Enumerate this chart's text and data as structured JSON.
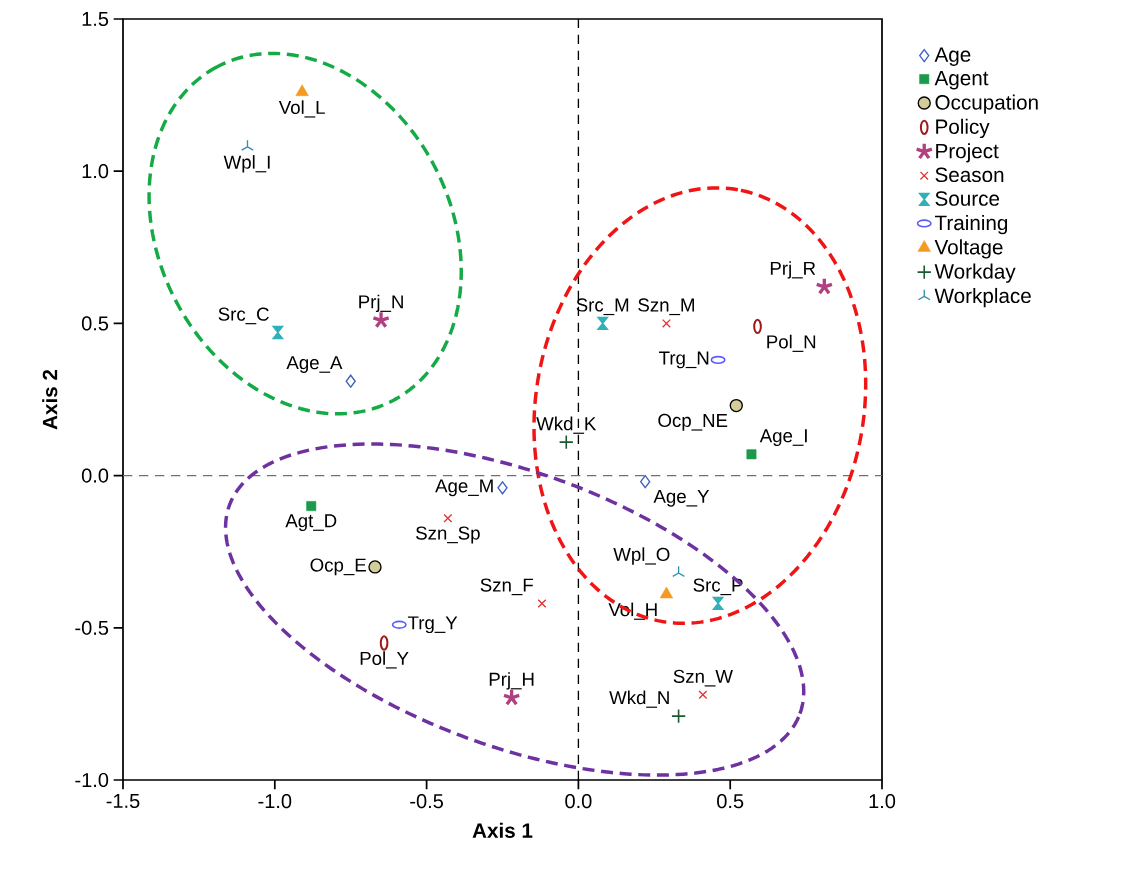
{
  "chart_data": {
    "type": "scatter",
    "xlabel": "Axis 1",
    "ylabel": "Axis 2",
    "xlim": [
      -1.5,
      1.0
    ],
    "ylim": [
      -1.0,
      1.5
    ],
    "xticks": [
      {
        "value": -1.5,
        "label": "-1.5"
      },
      {
        "value": -1.0,
        "label": "-1.0"
      },
      {
        "value": -0.5,
        "label": "-0.5"
      },
      {
        "value": 0.0,
        "label": "0.0"
      },
      {
        "value": 0.5,
        "label": "0.5"
      },
      {
        "value": 1.0,
        "label": "1.0"
      }
    ],
    "yticks": [
      {
        "value": -1.0,
        "label": "-1.0"
      },
      {
        "value": -0.5,
        "label": "-0.5"
      },
      {
        "value": 0.0,
        "label": "0.0"
      },
      {
        "value": 0.5,
        "label": "0.5"
      },
      {
        "value": 1.0,
        "label": "1.0"
      },
      {
        "value": 1.5,
        "label": "1.5"
      }
    ],
    "legend": "right",
    "grid": false,
    "ref_lines": [
      {
        "axis": "x",
        "value": 0,
        "color": "#000000",
        "line_style": "dashed"
      },
      {
        "axis": "y",
        "value": 0,
        "color": "#707070",
        "line_style": "dashed"
      }
    ],
    "series": [
      {
        "name": "Age",
        "color": "#3f5fbf",
        "x": [
          -0.75,
          0.22,
          -0.25
        ],
        "values": [
          0.31,
          -0.02,
          -0.04
        ]
      },
      {
        "name": "Agent",
        "color": "#1a9a4a",
        "x": [
          0.57,
          -0.88
        ],
        "values": [
          0.07,
          -0.1
        ]
      },
      {
        "name": "Occupation",
        "color": "#d4cc99",
        "x": [
          0.52,
          -0.67
        ],
        "values": [
          0.23,
          -0.3
        ]
      },
      {
        "name": "Policy",
        "color": "#a01818",
        "x": [
          0.59,
          -0.64
        ],
        "values": [
          0.49,
          -0.55
        ]
      },
      {
        "name": "Project",
        "color": "#b04080",
        "x": [
          -0.65,
          0.81,
          -0.22
        ],
        "values": [
          0.51,
          0.62,
          -0.73
        ]
      },
      {
        "name": "Season",
        "color": "#e83030",
        "x": [
          0.29,
          -0.43,
          -0.12,
          0.41
        ],
        "values": [
          0.5,
          -0.14,
          -0.42,
          -0.72
        ]
      },
      {
        "name": "Source",
        "color": "#30b0b8",
        "x": [
          -0.99,
          0.08,
          0.46
        ],
        "values": [
          0.47,
          0.5,
          -0.42
        ]
      },
      {
        "name": "Training",
        "color": "#5a5aff",
        "x": [
          0.46,
          -0.59
        ],
        "values": [
          0.38,
          -0.49
        ]
      },
      {
        "name": "Voltage",
        "color": "#f59a20",
        "x": [
          -0.91,
          0.29
        ],
        "values": [
          1.26,
          -0.39
        ]
      },
      {
        "name": "Workday",
        "color": "#1a5a30",
        "x": [
          -0.04,
          0.33
        ],
        "values": [
          0.11,
          -0.79
        ]
      },
      {
        "name": "Workplace",
        "color": "#3090b0",
        "x": [
          -1.09,
          0.33
        ],
        "values": [
          1.08,
          -0.32
        ]
      }
    ],
    "annotations": [
      {
        "text": "Vol_L",
        "x": -0.91,
        "y": 1.26
      },
      {
        "text": "Wpl_I",
        "x": -1.09,
        "y": 1.08
      },
      {
        "text": "Src_C",
        "x": -0.99,
        "y": 0.47
      },
      {
        "text": "Prj_N",
        "x": -0.65,
        "y": 0.51
      },
      {
        "text": "Age_A",
        "x": -0.75,
        "y": 0.31
      },
      {
        "text": "Src_M",
        "x": 0.08,
        "y": 0.5
      },
      {
        "text": "Szn_M",
        "x": 0.29,
        "y": 0.5
      },
      {
        "text": "Prj_R",
        "x": 0.81,
        "y": 0.62
      },
      {
        "text": "Pol_N",
        "x": 0.59,
        "y": 0.49
      },
      {
        "text": "Trg_N",
        "x": 0.46,
        "y": 0.38
      },
      {
        "text": "Ocp_NE",
        "x": 0.52,
        "y": 0.23
      },
      {
        "text": "Wkd_K",
        "x": -0.04,
        "y": 0.11
      },
      {
        "text": "Age_I",
        "x": 0.57,
        "y": 0.07
      },
      {
        "text": "Age_Y",
        "x": 0.22,
        "y": -0.02
      },
      {
        "text": "Age_M",
        "x": -0.25,
        "y": -0.04
      },
      {
        "text": "Agt_D",
        "x": -0.88,
        "y": -0.1
      },
      {
        "text": "Szn_Sp",
        "x": -0.43,
        "y": -0.14
      },
      {
        "text": "Ocp_E",
        "x": -0.67,
        "y": -0.3
      },
      {
        "text": "Szn_F",
        "x": -0.12,
        "y": -0.42
      },
      {
        "text": "Wpl_O",
        "x": 0.33,
        "y": -0.32
      },
      {
        "text": "Vol_H",
        "x": 0.29,
        "y": -0.39
      },
      {
        "text": "Src_P",
        "x": 0.46,
        "y": -0.42
      },
      {
        "text": "Trg_Y",
        "x": -0.59,
        "y": -0.49
      },
      {
        "text": "Pol_Y",
        "x": -0.64,
        "y": -0.55
      },
      {
        "text": "Prj_H",
        "x": -0.22,
        "y": -0.73
      },
      {
        "text": "Szn_W",
        "x": 0.41,
        "y": -0.72
      },
      {
        "text": "Wkd_N",
        "x": 0.33,
        "y": -0.79
      }
    ]
  }
}
